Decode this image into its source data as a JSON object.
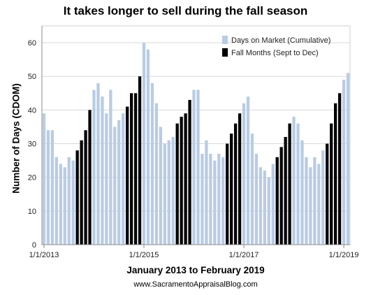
{
  "chart_data": {
    "type": "bar",
    "title": "It takes longer to sell during the fall season",
    "xlabel": "January 2013 to February 2019",
    "ylabel": "Number of Days (CDOM)",
    "ylim": [
      0,
      65
    ],
    "yticks": [
      0,
      10,
      20,
      30,
      40,
      50,
      60
    ],
    "xticks": [
      {
        "label": "1/1/2013",
        "index": 0
      },
      {
        "label": "1/1/2015",
        "index": 24
      },
      {
        "label": "1/1/2017",
        "index": 48
      },
      {
        "label": "1/1/2019",
        "index": 72
      }
    ],
    "grid": true,
    "legend_position": "top-right",
    "series": [
      {
        "name": "Days on Market (Cumulative)",
        "color": "#b8cce4"
      },
      {
        "name": "Fall Months (Sept to Dec)",
        "color": "#000000"
      }
    ],
    "values": [
      39,
      34,
      34,
      26,
      24,
      23,
      26,
      25,
      28,
      31,
      34,
      40,
      46,
      48,
      44,
      39,
      46,
      35,
      37,
      39,
      41,
      45,
      45,
      50,
      60,
      58,
      48,
      42,
      35,
      30,
      31,
      32,
      36,
      38,
      39,
      43,
      46,
      46,
      27,
      31,
      27,
      25,
      27,
      26,
      30,
      33,
      36,
      39,
      42,
      44,
      33,
      27,
      23,
      22,
      20,
      24,
      26,
      29,
      32,
      36,
      38,
      36,
      31,
      26,
      23,
      26,
      24,
      28,
      30,
      36,
      42,
      45,
      49,
      51
    ],
    "fall_flags": [
      0,
      0,
      0,
      0,
      0,
      0,
      0,
      0,
      1,
      1,
      1,
      1,
      0,
      0,
      0,
      0,
      0,
      0,
      0,
      0,
      1,
      1,
      1,
      1,
      0,
      0,
      0,
      0,
      0,
      0,
      0,
      0,
      1,
      1,
      1,
      1,
      0,
      0,
      0,
      0,
      0,
      0,
      0,
      0,
      1,
      1,
      1,
      1,
      0,
      0,
      0,
      0,
      0,
      0,
      0,
      0,
      1,
      1,
      1,
      1,
      0,
      0,
      0,
      0,
      0,
      0,
      0,
      0,
      1,
      1,
      1,
      1,
      0,
      0
    ]
  },
  "watermark": "www.SacramentoAppraisalBlog.com"
}
